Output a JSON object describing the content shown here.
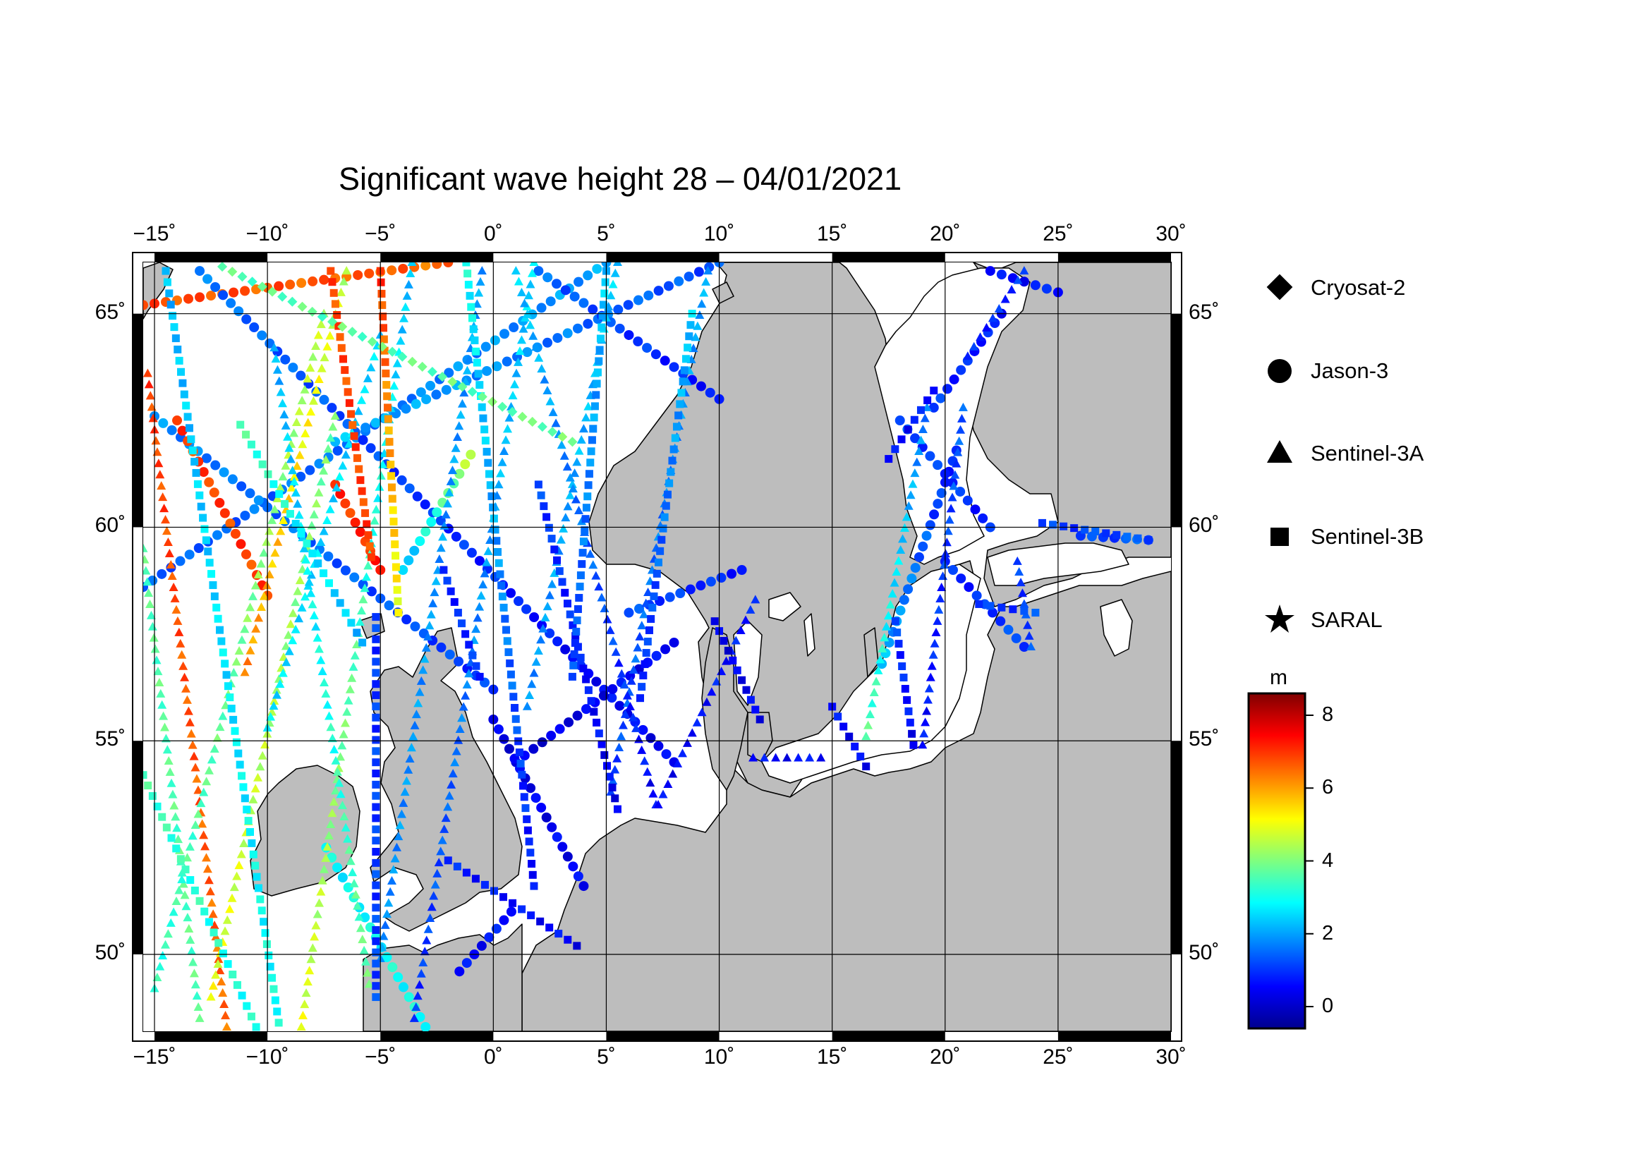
{
  "title": "Significant wave height 28 – 04/01/2021",
  "map": {
    "lon_range": [
      -15.5,
      30
    ],
    "lat_range": [
      48.2,
      66.2
    ],
    "lon_ticks": [
      -15,
      -10,
      -5,
      0,
      5,
      10,
      15,
      20,
      25,
      30
    ],
    "lon_tick_labels": [
      "−15˚",
      "−10˚",
      "−5˚",
      "0˚",
      "5˚",
      "10˚",
      "15˚",
      "20˚",
      "25˚",
      "30˚"
    ],
    "lat_ticks": [
      50,
      55,
      60,
      65
    ],
    "lat_tick_labels": [
      "50˚",
      "55˚",
      "60˚",
      "65˚"
    ],
    "grid": true,
    "ocean_color": "#ffffff",
    "land_color": "#bdbdbd"
  },
  "legend": {
    "items": [
      {
        "label": "Cryosat-2",
        "symbol": "diamond-icon"
      },
      {
        "label": "Jason-3",
        "symbol": "circle-icon"
      },
      {
        "label": "Sentinel-3A",
        "symbol": "triangle-icon"
      },
      {
        "label": "Sentinel-3B",
        "symbol": "square-icon"
      },
      {
        "label": "SARAL",
        "symbol": "star-icon"
      }
    ]
  },
  "colorbar": {
    "unit": "m",
    "min": -0.6,
    "max": 8.6,
    "ticks": [
      0,
      2,
      4,
      6,
      8
    ],
    "tick_labels": [
      "0",
      "2",
      "4",
      "6",
      "8"
    ],
    "colormap": "jet"
  },
  "chart_data": {
    "type": "scatter",
    "x_label": "",
    "y_label": "",
    "xlim": [
      -15.5,
      30
    ],
    "ylim": [
      48.2,
      66.2
    ],
    "series": [
      {
        "name": "Jason-3",
        "marker": "circle",
        "tracks": [
          {
            "from": [
              -15.5,
              65.2
            ],
            "to": [
              -2,
              66.2
            ],
            "h_from": 6.8,
            "h_to": 6.5
          },
          {
            "from": [
              -15.5,
              58.6
            ],
            "to": [
              5,
              66.2
            ],
            "h_from": 1.3,
            "h_to": 2.0
          },
          {
            "from": [
              -15,
              62.6
            ],
            "to": [
              0,
              56.2
            ],
            "h_from": 1.8,
            "h_to": 1.0
          },
          {
            "from": [
              -7,
              62.0
            ],
            "to": [
              10,
              66.2
            ],
            "h_from": 2.2,
            "h_to": 1.2
          },
          {
            "from": [
              -13,
              66.0
            ],
            "to": [
              8,
              54.5
            ],
            "h_from": 1.6,
            "h_to": 0.4
          },
          {
            "from": [
              2,
              66.0
            ],
            "to": [
              10,
              63.0
            ],
            "h_from": 1.5,
            "h_to": 0.6
          },
          {
            "from": [
              -14,
              62.5
            ],
            "to": [
              -10,
              58.4
            ],
            "h_from": 6.9,
            "h_to": 6.9
          },
          {
            "from": [
              -7,
              61.0
            ],
            "to": [
              -5,
              59.0
            ],
            "h_from": 7.0,
            "h_to": 7.1
          },
          {
            "from": [
              -1,
              61.7
            ],
            "to": [
              -4,
              59.0
            ],
            "h_from": 4.5,
            "h_to": 2.2
          },
          {
            "from": [
              1,
              54.5
            ],
            "to": [
              8,
              57.3
            ],
            "h_from": 0.2,
            "h_to": 0.6
          },
          {
            "from": [
              0,
              55.5
            ],
            "to": [
              4,
              51.6
            ],
            "h_from": 0.3,
            "h_to": 0.5
          },
          {
            "from": [
              -7.4,
              52.5
            ],
            "to": [
              -3,
              48.3
            ],
            "h_from": 2.8,
            "h_to": 3.0
          },
          {
            "from": [
              -1.5,
              49.6
            ],
            "to": [
              0.8,
              51.0
            ],
            "h_from": 0.5,
            "h_to": 0.8
          },
          {
            "from": [
              6,
              58.0
            ],
            "to": [
              11,
              59.0
            ],
            "h_from": 1.2,
            "h_to": 0.8
          },
          {
            "from": [
              17.2,
              56.8
            ],
            "to": [
              20.5,
              61.8
            ],
            "h_from": 2.2,
            "h_to": 0.7
          },
          {
            "from": [
              18,
              62.5
            ],
            "to": [
              22,
              60.0
            ],
            "h_from": 1.2,
            "h_to": 0.8
          },
          {
            "from": [
              19.5,
              62.8
            ],
            "to": [
              22.5,
              65.0
            ],
            "h_from": 1.0,
            "h_to": 0.7
          },
          {
            "from": [
              22,
              66.0
            ],
            "to": [
              25,
              65.5
            ],
            "h_from": 0.5,
            "h_to": 0.8
          },
          {
            "from": [
              20,
              59.2
            ],
            "to": [
              23.5,
              57.2
            ],
            "h_from": 0.8,
            "h_to": 1.2
          },
          {
            "from": [
              26,
              59.8
            ],
            "to": [
              29,
              59.7
            ],
            "h_from": 1.0,
            "h_to": 1.4
          }
        ]
      },
      {
        "name": "Sentinel-3A",
        "marker": "triangle",
        "tracks": [
          {
            "from": [
              -15.3,
              63.6
            ],
            "to": [
              -11.8,
              48.3
            ],
            "h_from": 6.9,
            "h_to": 6.5
          },
          {
            "from": [
              -15.5,
              59.5
            ],
            "to": [
              -13,
              48.5
            ],
            "h_from": 3.6,
            "h_to": 3.6
          },
          {
            "from": [
              -12.5,
              49.0
            ],
            "to": [
              -7,
              62.6
            ],
            "h_from": 5.0,
            "h_to": 3.8
          },
          {
            "from": [
              -8.5,
              48.3
            ],
            "to": [
              -3.6,
              66.2
            ],
            "h_from": 4.9,
            "h_to": 2.2
          },
          {
            "from": [
              -11,
              56.6
            ],
            "to": [
              -6.5,
              66.0
            ],
            "h_from": 6.2,
            "h_to": 4.5
          },
          {
            "from": [
              -10,
              55.3
            ],
            "to": [
              -5,
              64.5
            ],
            "h_from": 2.6,
            "h_to": 2.5
          },
          {
            "from": [
              -5.0,
              49.9
            ],
            "to": [
              -0.5,
              66.0
            ],
            "h_from": 1.8,
            "h_to": 2.0
          },
          {
            "from": [
              -15.0,
              49.2
            ],
            "to": [
              -7.5,
              65.0
            ],
            "h_from": 3.2,
            "h_to": 4.6
          },
          {
            "from": [
              -9.7,
              64.2
            ],
            "to": [
              -5.5,
              49.3
            ],
            "h_from": 2.1,
            "h_to": 3.8
          },
          {
            "from": [
              -3.5,
              48.5
            ],
            "to": [
              1.8,
              66.2
            ],
            "h_from": 0.9,
            "h_to": 2.6
          },
          {
            "from": [
              1.5,
              55.8
            ],
            "to": [
              5.5,
              66.2
            ],
            "h_from": 1.8,
            "h_to": 2.4
          },
          {
            "from": [
              5.2,
              53.8
            ],
            "to": [
              9.5,
              66.0
            ],
            "h_from": 1.1,
            "h_to": 2.1
          },
          {
            "from": [
              1.0,
              66.0
            ],
            "to": [
              7.2,
              53.5
            ],
            "h_from": 2.4,
            "h_to": 0.5
          },
          {
            "from": [
              7.3,
              53.5
            ],
            "to": [
              11.6,
              58.3
            ],
            "h_from": 0.5,
            "h_to": 0.8
          },
          {
            "from": [
              11.5,
              54.6
            ],
            "to": [
              14.5,
              54.6
            ],
            "h_from": 0.5,
            "h_to": 0.6
          },
          {
            "from": [
              16.5,
              55.1
            ],
            "to": [
              19.2,
              62.8
            ],
            "h_from": 3.6,
            "h_to": 1.6
          },
          {
            "from": [
              19.0,
              54.9
            ],
            "to": [
              20.8,
              62.8
            ],
            "h_from": 0.6,
            "h_to": 1.4
          },
          {
            "from": [
              21.0,
              64.0
            ],
            "to": [
              23.5,
              66.0
            ],
            "h_from": 0.8,
            "h_to": 1.0
          },
          {
            "from": [
              23.2,
              59.2
            ],
            "to": [
              23.8,
              57.2
            ],
            "h_from": 1.0,
            "h_to": 1.2
          }
        ]
      },
      {
        "name": "Sentinel-3B",
        "marker": "square",
        "tracks": [
          {
            "from": [
              -15.5,
              54.2
            ],
            "to": [
              -10.5,
              48.3
            ],
            "h_from": 3.4,
            "h_to": 3.0
          },
          {
            "from": [
              -14.5,
              66.0
            ],
            "to": [
              -9.5,
              48.4
            ],
            "h_from": 2.2,
            "h_to": 3.0
          },
          {
            "from": [
              -11.2,
              62.4
            ],
            "to": [
              -5.8,
              57.3
            ],
            "h_from": 3.5,
            "h_to": 2.2
          },
          {
            "from": [
              -5.0,
              66.0
            ],
            "to": [
              -4.2,
              58.0
            ],
            "h_from": 7.0,
            "h_to": 5.0
          },
          {
            "from": [
              -7.2,
              66.0
            ],
            "to": [
              -5.4,
              59.3
            ],
            "h_from": 6.8,
            "h_to": 6.9
          },
          {
            "from": [
              -5.2,
              57.9
            ],
            "to": [
              -5.2,
              49.0
            ],
            "h_from": 1.0,
            "h_to": 1.1
          },
          {
            "from": [
              -2.2,
              59.0
            ],
            "to": [
              -0.6,
              56.5
            ],
            "h_from": 0.8,
            "h_to": 1.0
          },
          {
            "from": [
              -1.2,
              66.2
            ],
            "to": [
              1.8,
              51.6
            ],
            "h_from": 3.0,
            "h_to": 0.6
          },
          {
            "from": [
              2.0,
              61.0
            ],
            "to": [
              5.5,
              53.4
            ],
            "h_from": 1.1,
            "h_to": 0.4
          },
          {
            "from": [
              3.5,
              56.5
            ],
            "to": [
              5.0,
              66.0
            ],
            "h_from": 1.1,
            "h_to": 2.4
          },
          {
            "from": [
              6.5,
              56.0
            ],
            "to": [
              8.8,
              65.0
            ],
            "h_from": 0.8,
            "h_to": 2.4
          },
          {
            "from": [
              9.8,
              57.8
            ],
            "to": [
              11.8,
              55.5
            ],
            "h_from": 0.3,
            "h_to": 0.5
          },
          {
            "from": [
              -2.0,
              52.2
            ],
            "to": [
              3.7,
              50.2
            ],
            "h_from": 0.8,
            "h_to": 0.5
          },
          {
            "from": [
              15.0,
              55.8
            ],
            "to": [
              16.5,
              54.4
            ],
            "h_from": 0.6,
            "h_to": 0.5
          },
          {
            "from": [
              17.8,
              57.8
            ],
            "to": [
              18.6,
              54.9
            ],
            "h_from": 1.1,
            "h_to": 0.5
          },
          {
            "from": [
              21.5,
              58.2
            ],
            "to": [
              24.0,
              58.0
            ],
            "h_from": 0.9,
            "h_to": 1.2
          },
          {
            "from": [
              24.3,
              60.1
            ],
            "to": [
              29.0,
              59.7
            ],
            "h_from": 1.0,
            "h_to": 1.3
          },
          {
            "from": [
              17.5,
              61.6
            ],
            "to": [
              19.5,
              63.2
            ],
            "h_from": 0.5,
            "h_to": 0.8
          }
        ]
      },
      {
        "name": "Cryosat-2",
        "marker": "diamond",
        "tracks": [
          {
            "from": [
              -12.0,
              66.1
            ],
            "to": [
              3.5,
              62.0
            ],
            "h_from": 3.6,
            "h_to": 3.8
          }
        ]
      },
      {
        "name": "SARAL",
        "marker": "star",
        "tracks": []
      }
    ]
  }
}
